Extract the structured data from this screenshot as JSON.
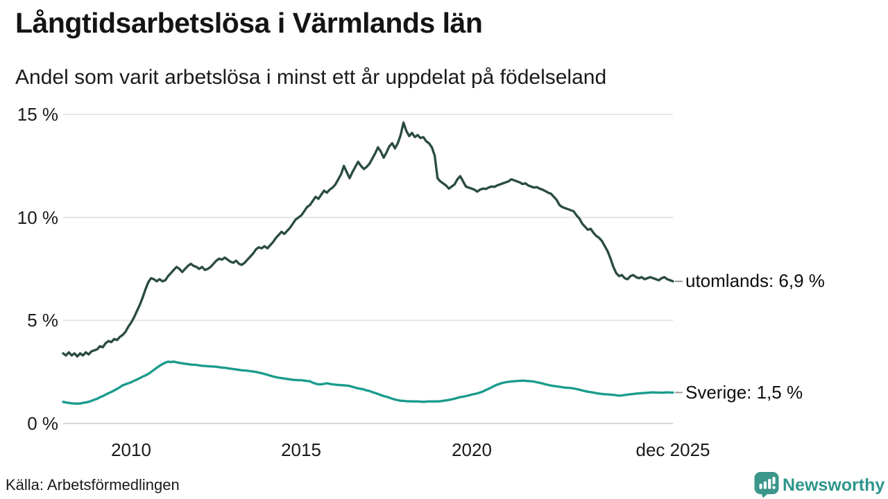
{
  "chart_data": {
    "type": "line",
    "title": "Långtidsarbetslösa i Värmlands län",
    "subtitle": "Andel som varit arbetslösa i minst ett år uppdelat på födelseland",
    "unit": "%",
    "frequency": "monthly",
    "x_start": "2008-01",
    "x_end": "2025-12",
    "ylim": [
      0,
      15.5
    ],
    "grid": "horizontal",
    "grid_color": "#e4e4e4",
    "zero_line_color": "#d6d6d6",
    "connector_color": "#999999",
    "y_ticks": [
      {
        "label": "0 %",
        "value": 0
      },
      {
        "label": "5 %",
        "value": 5
      },
      {
        "label": "10 %",
        "value": 10
      },
      {
        "label": "15 %",
        "value": 15
      }
    ],
    "x_ticks": [
      {
        "label": "2010",
        "year": 2010
      },
      {
        "label": "2015",
        "year": 2015
      },
      {
        "label": "2020",
        "year": 2020
      },
      {
        "label": "dec 2025",
        "year": 2025.9167
      }
    ],
    "series": [
      {
        "name": "utomlands",
        "label": "utomlands: 6,9 %",
        "last_value": 6.9,
        "color": "#2b4c41",
        "values": [
          3.4,
          3.3,
          3.45,
          3.3,
          3.4,
          3.25,
          3.4,
          3.3,
          3.45,
          3.35,
          3.5,
          3.55,
          3.6,
          3.75,
          3.7,
          3.9,
          4.0,
          3.95,
          4.1,
          4.05,
          4.2,
          4.3,
          4.45,
          4.7,
          4.9,
          5.15,
          5.45,
          5.75,
          6.1,
          6.5,
          6.85,
          7.05,
          7.0,
          6.9,
          7.0,
          6.9,
          6.95,
          7.15,
          7.3,
          7.45,
          7.6,
          7.5,
          7.35,
          7.5,
          7.65,
          7.75,
          7.65,
          7.6,
          7.5,
          7.6,
          7.45,
          7.5,
          7.6,
          7.75,
          7.9,
          8.0,
          7.95,
          8.05,
          7.95,
          7.85,
          7.8,
          7.9,
          7.75,
          7.7,
          7.8,
          7.95,
          8.1,
          8.25,
          8.45,
          8.55,
          8.5,
          8.6,
          8.5,
          8.65,
          8.8,
          9.0,
          9.15,
          9.3,
          9.2,
          9.35,
          9.5,
          9.7,
          9.9,
          10.0,
          10.1,
          10.3,
          10.5,
          10.6,
          10.8,
          11.0,
          10.9,
          11.1,
          11.3,
          11.2,
          11.35,
          11.45,
          11.6,
          11.85,
          12.1,
          12.5,
          12.2,
          11.9,
          12.2,
          12.45,
          12.7,
          12.5,
          12.35,
          12.45,
          12.6,
          12.85,
          13.1,
          13.4,
          13.2,
          12.9,
          13.15,
          13.45,
          13.6,
          13.35,
          13.6,
          14.0,
          14.6,
          14.2,
          13.95,
          14.1,
          13.9,
          14.0,
          13.85,
          13.9,
          13.7,
          13.6,
          13.4,
          13.0,
          11.9,
          11.75,
          11.65,
          11.55,
          11.4,
          11.5,
          11.6,
          11.85,
          12.0,
          11.75,
          11.5,
          11.45,
          11.4,
          11.35,
          11.25,
          11.35,
          11.4,
          11.38,
          11.45,
          11.5,
          11.48,
          11.55,
          11.6,
          11.65,
          11.7,
          11.75,
          11.85,
          11.8,
          11.75,
          11.7,
          11.62,
          11.65,
          11.55,
          11.5,
          11.45,
          11.47,
          11.4,
          11.35,
          11.28,
          11.2,
          11.15,
          11.0,
          10.85,
          10.6,
          10.5,
          10.45,
          10.4,
          10.35,
          10.3,
          10.1,
          9.95,
          9.7,
          9.55,
          9.4,
          9.45,
          9.25,
          9.1,
          9.0,
          8.85,
          8.6,
          8.35,
          8.0,
          7.6,
          7.3,
          7.15,
          7.2,
          7.05,
          7.0,
          7.15,
          7.2,
          7.1,
          7.05,
          7.1,
          7.0,
          7.05,
          7.1,
          7.05,
          7.0,
          6.95,
          7.05,
          7.1,
          7.0,
          6.95,
          6.9
        ]
      },
      {
        "name": "Sverige",
        "label": "Sverige: 1,5 %",
        "last_value": 1.5,
        "color": "#1a9c8d",
        "values": [
          1.05,
          1.02,
          1.0,
          0.98,
          0.97,
          0.96,
          0.97,
          1.0,
          1.02,
          1.05,
          1.1,
          1.15,
          1.2,
          1.27,
          1.33,
          1.4,
          1.47,
          1.53,
          1.6,
          1.68,
          1.76,
          1.85,
          1.9,
          1.95,
          2.0,
          2.07,
          2.13,
          2.2,
          2.27,
          2.33,
          2.4,
          2.5,
          2.6,
          2.7,
          2.8,
          2.88,
          2.95,
          3.0,
          2.98,
          3.0,
          2.97,
          2.94,
          2.92,
          2.9,
          2.88,
          2.86,
          2.85,
          2.84,
          2.82,
          2.8,
          2.79,
          2.78,
          2.77,
          2.76,
          2.75,
          2.73,
          2.71,
          2.7,
          2.68,
          2.66,
          2.64,
          2.62,
          2.6,
          2.58,
          2.57,
          2.56,
          2.54,
          2.52,
          2.5,
          2.47,
          2.44,
          2.4,
          2.36,
          2.32,
          2.28,
          2.25,
          2.22,
          2.2,
          2.18,
          2.16,
          2.14,
          2.12,
          2.11,
          2.1,
          2.1,
          2.08,
          2.06,
          2.05,
          1.98,
          1.93,
          1.9,
          1.9,
          1.92,
          1.95,
          1.92,
          1.9,
          1.88,
          1.87,
          1.86,
          1.85,
          1.84,
          1.82,
          1.78,
          1.74,
          1.7,
          1.68,
          1.65,
          1.6,
          1.58,
          1.52,
          1.48,
          1.43,
          1.38,
          1.33,
          1.3,
          1.25,
          1.2,
          1.16,
          1.13,
          1.1,
          1.1,
          1.08,
          1.08,
          1.07,
          1.07,
          1.07,
          1.06,
          1.05,
          1.06,
          1.07,
          1.07,
          1.07,
          1.07,
          1.08,
          1.1,
          1.12,
          1.14,
          1.17,
          1.2,
          1.24,
          1.28,
          1.3,
          1.33,
          1.36,
          1.4,
          1.43,
          1.46,
          1.5,
          1.55,
          1.62,
          1.68,
          1.75,
          1.82,
          1.88,
          1.93,
          1.97,
          2.0,
          2.02,
          2.04,
          2.05,
          2.06,
          2.07,
          2.08,
          2.07,
          2.06,
          2.05,
          2.03,
          2.0,
          1.97,
          1.94,
          1.9,
          1.87,
          1.84,
          1.82,
          1.8,
          1.78,
          1.76,
          1.74,
          1.73,
          1.72,
          1.7,
          1.67,
          1.64,
          1.6,
          1.57,
          1.54,
          1.52,
          1.5,
          1.47,
          1.45,
          1.43,
          1.42,
          1.41,
          1.4,
          1.39,
          1.37,
          1.35,
          1.36,
          1.38,
          1.4,
          1.42,
          1.43,
          1.45,
          1.46,
          1.47,
          1.48,
          1.49,
          1.5,
          1.51,
          1.5,
          1.5,
          1.49,
          1.5,
          1.51,
          1.5,
          1.5
        ]
      }
    ]
  },
  "footer": {
    "source": "Källa: Arbetsförmedlingen",
    "brand": "Newsworthy",
    "brand_color": "#2f968b",
    "brand_icon_color": "#3b968b"
  }
}
